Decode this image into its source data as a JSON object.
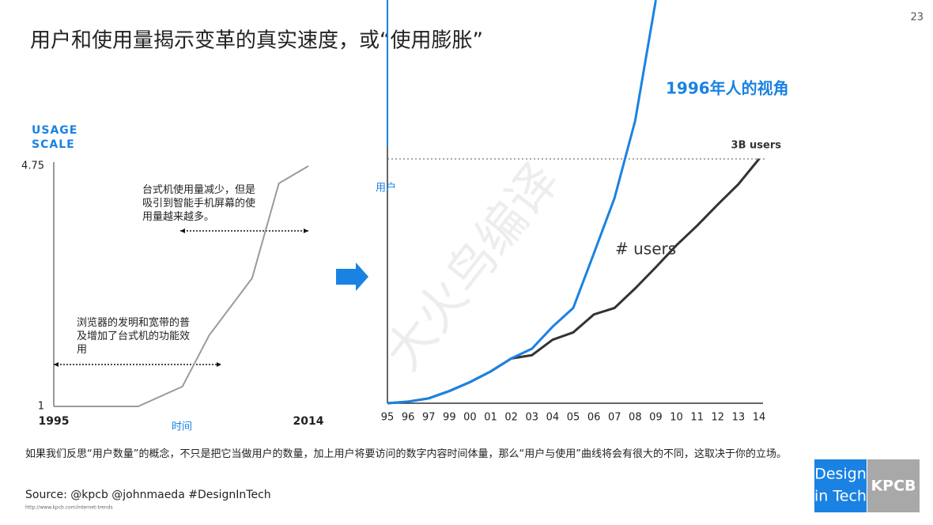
{
  "page_number": "23",
  "title": "用户和使用量揭示变革的真实速度，或“使用膨胀”",
  "watermark": "大火鸟编译",
  "chart_data": [
    {
      "type": "line",
      "ylabel": [
        "USAGE",
        "SCALE"
      ],
      "xlabel": "时间",
      "x": [
        1995,
        2001.3,
        2004.6,
        2006.6,
        2009.8,
        2011.8,
        2014
      ],
      "values": [
        1,
        1,
        1.31,
        2.11,
        3.0,
        4.48,
        4.75
      ],
      "color": "#9b9b9b",
      "xlim": [
        1995,
        2014
      ],
      "xticks": [
        1995,
        2014
      ],
      "ylim": [
        1,
        4.75
      ],
      "yticks": [
        1,
        4.75
      ],
      "annotations": [
        "台式机使用量减少，但是吸引到智能手机屏幕的使用量越来越多。",
        "浏览器的发明和宽带的普及增加了台式机的功能效用"
      ]
    },
    {
      "type": "line",
      "ylabel": "用户",
      "categories": [
        "95",
        "96",
        "97",
        "99",
        "00",
        "01",
        "02",
        "03",
        "04",
        "05",
        "06",
        "07",
        "08",
        "09",
        "10",
        "11",
        "12",
        "13",
        "14"
      ],
      "series": [
        {
          "name": "1996年人的视角",
          "color": "#1a82e2",
          "values": [
            0,
            0.02,
            0.06,
            0.15,
            0.26,
            0.39,
            0.55,
            0.67,
            0.94,
            1.17,
            1.84,
            2.52,
            3.47,
            4.95,
            null,
            null,
            null,
            null,
            null
          ]
        },
        {
          "name": "# users",
          "color": "#333333",
          "values": [
            0,
            0.02,
            0.06,
            0.15,
            0.26,
            0.39,
            0.55,
            0.59,
            0.78,
            0.87,
            1.09,
            1.17,
            1.41,
            1.67,
            1.94,
            2.18,
            2.44,
            2.69,
            3.0
          ]
        }
      ],
      "ylim": [
        0,
        5
      ],
      "reference": {
        "value": 3,
        "label": "3B users"
      }
    }
  ],
  "caption": "如果我们反思“用户数量”的概念，不只是把它当做用户的数量，加上用户将要访问的数字内容时间体量，那么“用户与使用”曲线将会有很大的不同，这取决于你的立场。",
  "source": "Source: @kpcb @johnmaeda #DesignInTech",
  "url": "http://www.kpcb.com/internet-trends",
  "logos": {
    "design": [
      "Design",
      "in Tech"
    ],
    "kpcb": "KPCB"
  }
}
